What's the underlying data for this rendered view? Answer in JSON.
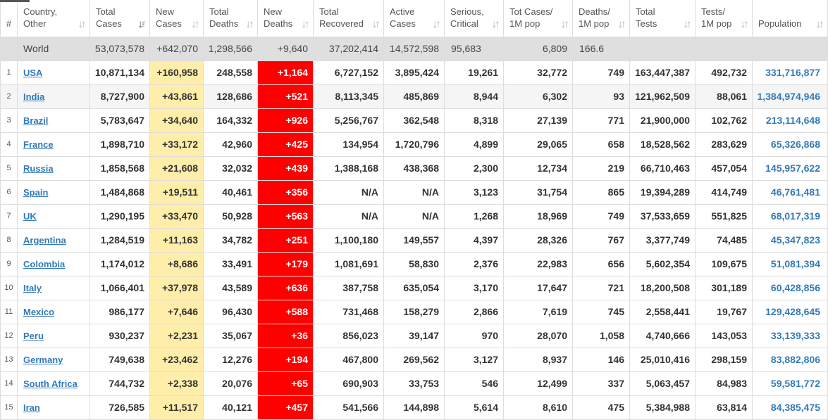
{
  "colors": {
    "new_cases_bg": "#FFEEAA",
    "new_deaths_bg": "#FF0000",
    "new_deaths_text": "#FFFFFF",
    "world_row_bg": "#DFDFDF",
    "hover_row_bg": "#F5F5F5",
    "link": "#337AB7",
    "grid_line": "#DDDDDD",
    "tab_indicator": "#555555"
  },
  "table": {
    "columns": [
      {
        "lines": [
          "#"
        ]
      },
      {
        "lines": [
          "Country,",
          "Other"
        ],
        "icon": "sort-arrows-icon"
      },
      {
        "lines": [
          "Total",
          "Cases"
        ],
        "icon": "sort-desc-icon"
      },
      {
        "lines": [
          "New",
          "Cases"
        ],
        "icon": "sort-arrows-icon"
      },
      {
        "lines": [
          "Total",
          "Deaths"
        ],
        "icon": "sort-arrows-icon"
      },
      {
        "lines": [
          "New",
          "Deaths"
        ],
        "icon": "sort-arrows-icon"
      },
      {
        "lines": [
          "Total",
          "Recovered"
        ],
        "icon": "sort-arrows-icon"
      },
      {
        "lines": [
          "Active",
          "Cases"
        ],
        "icon": "sort-arrows-icon"
      },
      {
        "lines": [
          "Serious,",
          "Critical"
        ],
        "icon": "sort-arrows-icon"
      },
      {
        "lines": [
          "Tot Cases/",
          "1M pop"
        ],
        "icon": "sort-arrows-icon"
      },
      {
        "lines": [
          "Deaths/",
          "1M pop"
        ],
        "icon": "sort-arrows-icon"
      },
      {
        "lines": [
          "Total",
          "Tests"
        ],
        "icon": "sort-arrows-icon"
      },
      {
        "lines": [
          "Tests/",
          "1M pop"
        ],
        "icon": "sort-arrows-icon"
      },
      {
        "lines": [
          "Population"
        ],
        "icon": "sort-arrows-icon"
      }
    ],
    "world_row": {
      "cells": [
        "",
        "World",
        "53,073,578",
        "+642,070",
        "1,298,566",
        "+9,640",
        "37,202,414",
        "14,572,598",
        "95,683",
        "6,809",
        "166.6",
        "",
        "",
        ""
      ]
    },
    "rows": [
      {
        "cells": [
          "1",
          "USA",
          "10,871,134",
          "+160,958",
          "248,558",
          "+1,164",
          "6,727,152",
          "3,895,424",
          "19,261",
          "32,772",
          "749",
          "163,447,387",
          "492,732",
          "331,716,877"
        ]
      },
      {
        "cells": [
          "2",
          "India",
          "8,727,900",
          "+43,861",
          "128,686",
          "+521",
          "8,113,345",
          "485,869",
          "8,944",
          "6,302",
          "93",
          "121,962,509",
          "88,061",
          "1,384,974,946"
        ],
        "hovered": true
      },
      {
        "cells": [
          "3",
          "Brazil",
          "5,783,647",
          "+34,640",
          "164,332",
          "+926",
          "5,256,767",
          "362,548",
          "8,318",
          "27,139",
          "771",
          "21,900,000",
          "102,762",
          "213,114,648"
        ]
      },
      {
        "cells": [
          "4",
          "France",
          "1,898,710",
          "+33,172",
          "42,960",
          "+425",
          "134,954",
          "1,720,796",
          "4,899",
          "29,065",
          "658",
          "18,528,562",
          "283,629",
          "65,326,868"
        ]
      },
      {
        "cells": [
          "5",
          "Russia",
          "1,858,568",
          "+21,608",
          "32,032",
          "+439",
          "1,388,168",
          "438,368",
          "2,300",
          "12,734",
          "219",
          "66,710,463",
          "457,054",
          "145,957,622"
        ]
      },
      {
        "cells": [
          "6",
          "Spain",
          "1,484,868",
          "+19,511",
          "40,461",
          "+356",
          "N/A",
          "N/A",
          "3,123",
          "31,754",
          "865",
          "19,394,289",
          "414,749",
          "46,761,481"
        ]
      },
      {
        "cells": [
          "7",
          "UK",
          "1,290,195",
          "+33,470",
          "50,928",
          "+563",
          "N/A",
          "N/A",
          "1,268",
          "18,969",
          "749",
          "37,533,659",
          "551,825",
          "68,017,319"
        ]
      },
      {
        "cells": [
          "8",
          "Argentina",
          "1,284,519",
          "+11,163",
          "34,782",
          "+251",
          "1,100,180",
          "149,557",
          "4,397",
          "28,326",
          "767",
          "3,377,749",
          "74,485",
          "45,347,823"
        ]
      },
      {
        "cells": [
          "9",
          "Colombia",
          "1,174,012",
          "+8,686",
          "33,491",
          "+179",
          "1,081,691",
          "58,830",
          "2,376",
          "22,983",
          "656",
          "5,602,354",
          "109,675",
          "51,081,394"
        ]
      },
      {
        "cells": [
          "10",
          "Italy",
          "1,066,401",
          "+37,978",
          "43,589",
          "+636",
          "387,758",
          "635,054",
          "3,170",
          "17,647",
          "721",
          "18,200,508",
          "301,189",
          "60,428,856"
        ]
      },
      {
        "cells": [
          "11",
          "Mexico",
          "986,177",
          "+7,646",
          "96,430",
          "+588",
          "731,468",
          "158,279",
          "2,866",
          "7,619",
          "745",
          "2,558,441",
          "19,767",
          "129,428,645"
        ]
      },
      {
        "cells": [
          "12",
          "Peru",
          "930,237",
          "+2,231",
          "35,067",
          "+36",
          "856,023",
          "39,147",
          "970",
          "28,070",
          "1,058",
          "4,740,666",
          "143,053",
          "33,139,333"
        ]
      },
      {
        "cells": [
          "13",
          "Germany",
          "749,638",
          "+23,462",
          "12,276",
          "+194",
          "467,800",
          "269,562",
          "3,127",
          "8,937",
          "146",
          "25,010,416",
          "298,159",
          "83,882,806"
        ]
      },
      {
        "cells": [
          "14",
          "South Africa",
          "744,732",
          "+2,338",
          "20,076",
          "+65",
          "690,903",
          "33,753",
          "546",
          "12,499",
          "337",
          "5,063,457",
          "84,983",
          "59,581,772"
        ]
      },
      {
        "cells": [
          "15",
          "Iran",
          "726,585",
          "+11,517",
          "40,121",
          "+457",
          "541,566",
          "144,898",
          "5,614",
          "8,610",
          "475",
          "5,384,988",
          "63,814",
          "84,385,475"
        ]
      }
    ]
  }
}
